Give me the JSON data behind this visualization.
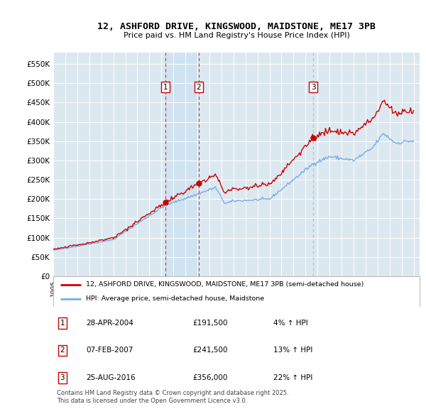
{
  "title": "12, ASHFORD DRIVE, KINGSWOOD, MAIDSTONE, ME17 3PB",
  "subtitle": "Price paid vs. HM Land Registry's House Price Index (HPI)",
  "plot_bg_color": "#dce8f0",
  "yticks": [
    0,
    50000,
    100000,
    150000,
    200000,
    250000,
    300000,
    350000,
    400000,
    450000,
    500000,
    550000
  ],
  "ytick_labels": [
    "£0",
    "£50K",
    "£100K",
    "£150K",
    "£200K",
    "£250K",
    "£300K",
    "£350K",
    "£400K",
    "£450K",
    "£500K",
    "£550K"
  ],
  "xlim_start": 1995.0,
  "xlim_end": 2025.5,
  "transactions": [
    {
      "num": 1,
      "date": "28-APR-2004",
      "price": 191500,
      "pct": "4%",
      "direction": "↑",
      "year": 2004.32
    },
    {
      "num": 2,
      "date": "07-FEB-2007",
      "price": 241500,
      "pct": "13%",
      "direction": "↑",
      "year": 2007.1
    },
    {
      "num": 3,
      "date": "25-AUG-2016",
      "price": 356000,
      "pct": "22%",
      "direction": "↑",
      "year": 2016.65
    }
  ],
  "legend_label_red": "12, ASHFORD DRIVE, KINGSWOOD, MAIDSTONE, ME17 3PB (semi-detached house)",
  "legend_label_blue": "HPI: Average price, semi-detached house, Maidstone",
  "footer": "Contains HM Land Registry data © Crown copyright and database right 2025.\nThis data is licensed under the Open Government Licence v3.0.",
  "red_color": "#cc0000",
  "blue_color": "#7aade0"
}
